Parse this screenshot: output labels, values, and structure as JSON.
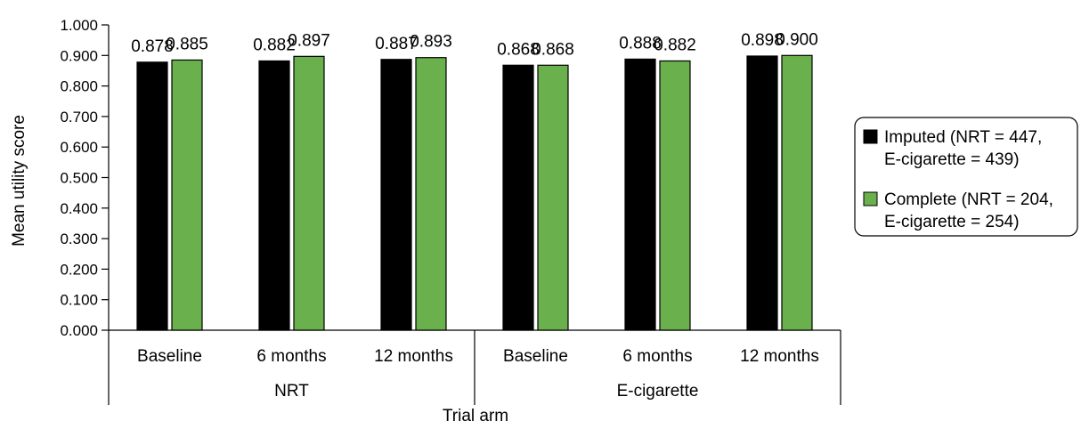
{
  "chart_data": {
    "type": "bar",
    "title": "",
    "xlabel": "Trial arm",
    "ylabel": "Mean utility score",
    "ylim": [
      0,
      1
    ],
    "yticks": [
      "0.000",
      "0.100",
      "0.200",
      "0.300",
      "0.400",
      "0.500",
      "0.600",
      "0.700",
      "0.800",
      "0.900",
      "1.000"
    ],
    "groups": [
      {
        "name": "NRT",
        "categories": [
          "Baseline",
          "6 months",
          "12 months"
        ]
      },
      {
        "name": "E-cigarette",
        "categories": [
          "Baseline",
          "6 months",
          "12 months"
        ]
      }
    ],
    "series": [
      {
        "name": "Imputed (NRT = 447, E-cigarette = 439)",
        "legend_lines": [
          "Imputed (NRT = 447,",
          "E-cigarette = 439)"
        ],
        "color": "#000000",
        "values": [
          0.878,
          0.882,
          0.887,
          0.868,
          0.888,
          0.898
        ],
        "labels": [
          "0.878",
          "0.882",
          "0.887",
          "0.868",
          "0.888",
          "0.898"
        ]
      },
      {
        "name": "Complete (NRT = 204, E-cigarette = 254)",
        "legend_lines": [
          "Complete (NRT = 204,",
          "E-cigarette = 254)"
        ],
        "color": "#6ab04c",
        "values": [
          0.885,
          0.897,
          0.893,
          0.868,
          0.882,
          0.9
        ],
        "labels": [
          "0.885",
          "0.897",
          "0.893",
          "0.868",
          "0.882",
          "0.900"
        ]
      }
    ],
    "legend_position": "right",
    "grid": false
  }
}
